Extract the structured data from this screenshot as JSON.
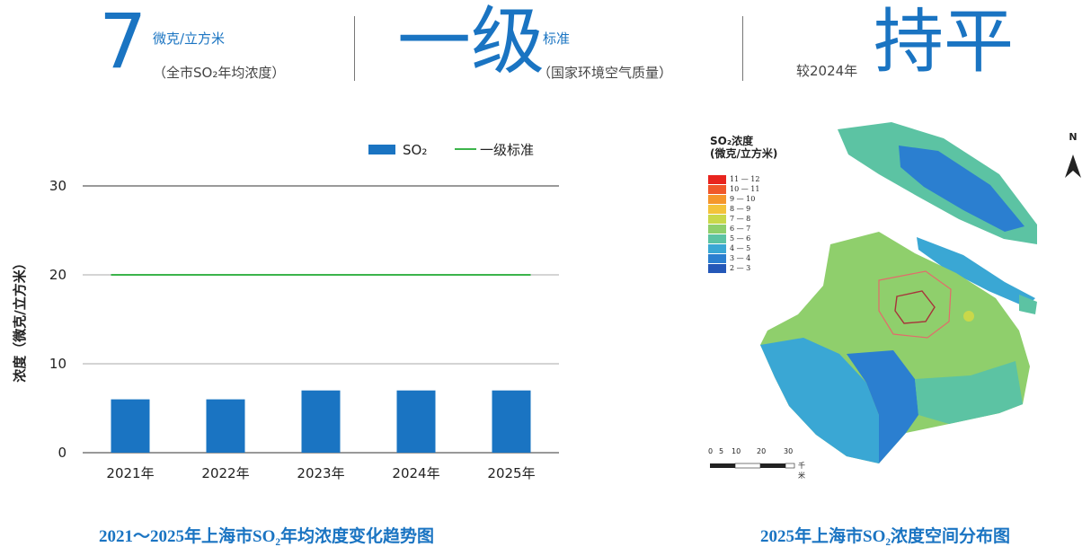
{
  "header": {
    "stat1": {
      "value": "7",
      "unit": "微克/立方米",
      "note": "（全市SO₂年均浓度）"
    },
    "stat2": {
      "value": "一级",
      "unit": "标准",
      "note": "（国家环境空气质量）"
    },
    "stat3": {
      "prefix": "较2024年",
      "value": "持平"
    }
  },
  "chart_caption": "2021～2025年上海市SO₂年均浓度变化趋势图",
  "map_caption": "2025年上海市SO₂浓度空间分布图",
  "chart_data": {
    "type": "bar",
    "categories": [
      "2021年",
      "2022年",
      "2023年",
      "2024年",
      "2025年"
    ],
    "series": [
      {
        "name": "SO₂",
        "values": [
          6,
          6,
          7,
          7,
          7
        ],
        "color": "#1a74c2"
      }
    ],
    "reference_line": {
      "name": "一级标准",
      "value": 20,
      "color": "#3cb44b"
    },
    "ylabel": "浓度（微克/立方米）",
    "ylim": [
      0,
      30
    ],
    "yticks": [
      0,
      10,
      20,
      30
    ],
    "grid": true,
    "legend_position": "top-right"
  },
  "map": {
    "title_line1": "SO₂浓度",
    "title_line2": "(微克/立方米)",
    "legend": [
      {
        "label": "11 — 12",
        "color": "#e8241e"
      },
      {
        "label": "10 — 11",
        "color": "#f0582a"
      },
      {
        "label": "9 — 10",
        "color": "#f5962b"
      },
      {
        "label": "8 — 9",
        "color": "#f3c33a"
      },
      {
        "label": "7 — 8",
        "color": "#c9d84a"
      },
      {
        "label": "6 — 7",
        "color": "#8fcf6c"
      },
      {
        "label": "5 — 6",
        "color": "#5cc3a3"
      },
      {
        "label": "4 — 5",
        "color": "#3aa7d4"
      },
      {
        "label": "3 — 4",
        "color": "#2b7fd0"
      },
      {
        "label": "2 — 3",
        "color": "#2458b8"
      }
    ],
    "north_label": "N",
    "scale_labels": [
      "0",
      "5",
      "10",
      "20",
      "30"
    ],
    "scale_unit": "千米"
  }
}
